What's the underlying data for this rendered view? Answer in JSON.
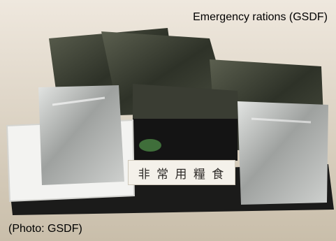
{
  "caption_top": "Emergency rations (GSDF)",
  "caption_bottom": "(Photo: GSDF)",
  "label_text": "非 常 用 糧 食",
  "colors": {
    "background": "#d9d0c2",
    "pouch_dark": "#3b3f33",
    "pouch_silver": "#b7b9b6",
    "tray_white": "#f3f3f1",
    "base_black": "#1b1b1a"
  }
}
